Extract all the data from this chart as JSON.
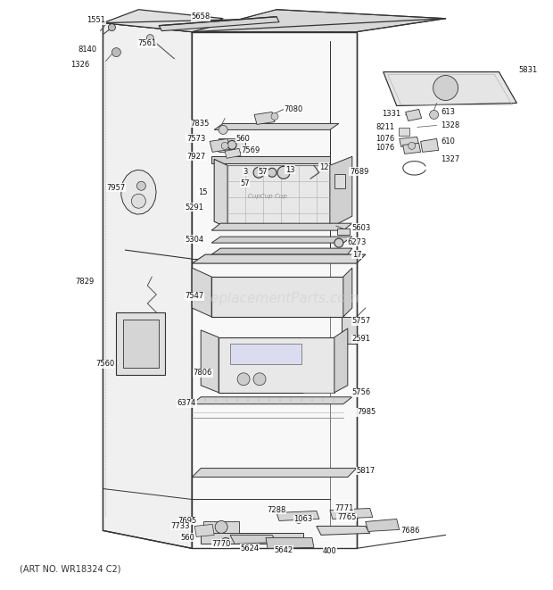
{
  "background_color": "#ffffff",
  "watermark": "eReplacementParts.com",
  "art_no": "(ART NO. WR18324 C2)",
  "figure_width": 6.2,
  "figure_height": 6.61,
  "dpi": 100,
  "label_fontsize": 6.0,
  "label_color": "#111111",
  "watermark_color": "#cccccc",
  "watermark_fontsize": 11,
  "art_no_fontsize": 7.0,
  "lc": "#333333",
  "lw": 0.8
}
